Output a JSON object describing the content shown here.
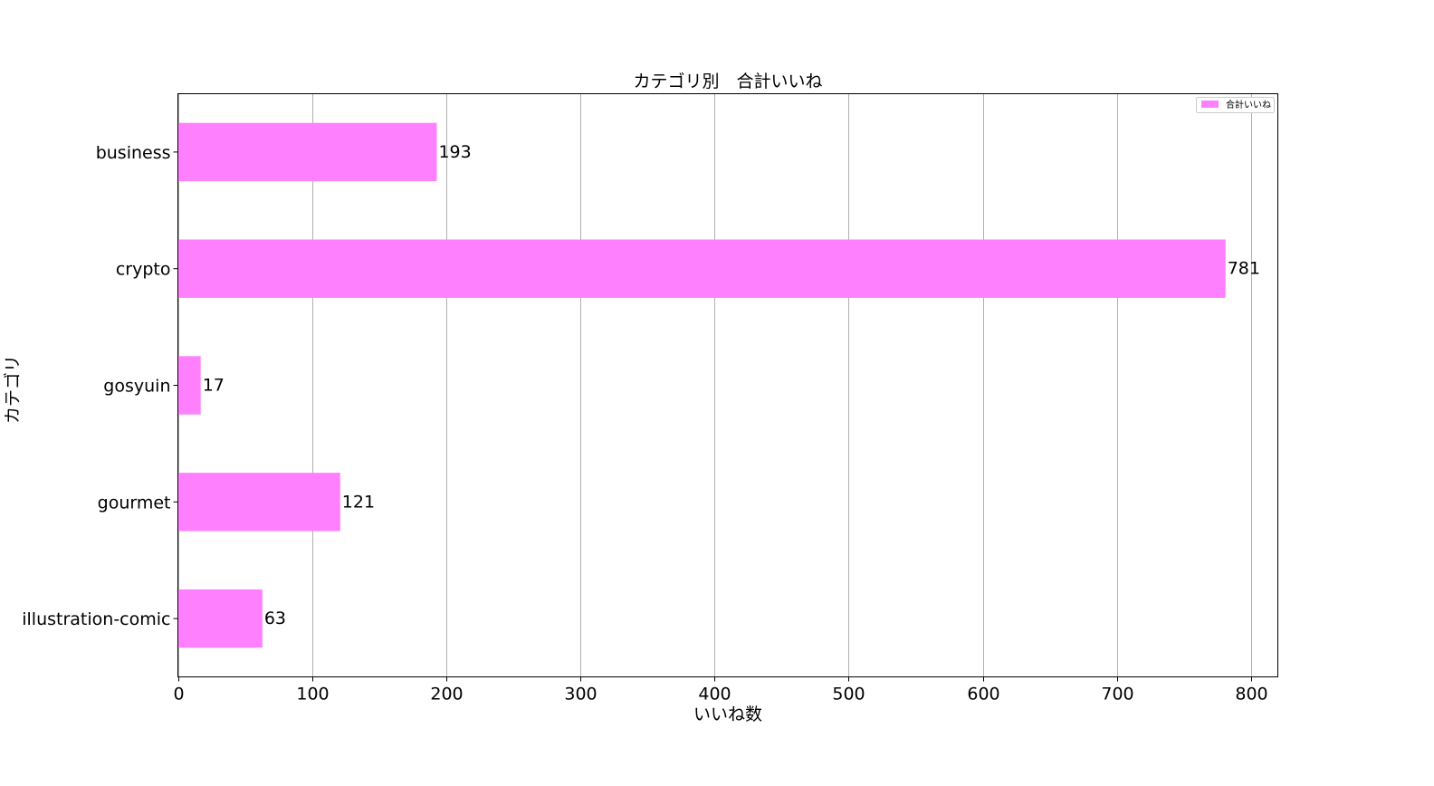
{
  "chart_data": {
    "type": "bar",
    "orientation": "horizontal",
    "title": "カテゴリ別　合計いいね",
    "xlabel": "いいね数",
    "ylabel": "カテゴリ",
    "categories": [
      "business",
      "crypto",
      "gosyuin",
      "gourmet",
      "illustration-comic"
    ],
    "series": [
      {
        "name": "合計いいね",
        "values": [
          193,
          781,
          17,
          121,
          63
        ],
        "color": "#ff80ff"
      }
    ],
    "xlim": [
      0,
      820
    ],
    "xticks": [
      0,
      100,
      200,
      300,
      400,
      500,
      600,
      700,
      800
    ],
    "grid": "x",
    "legend": "top-right",
    "data_labels": true
  }
}
